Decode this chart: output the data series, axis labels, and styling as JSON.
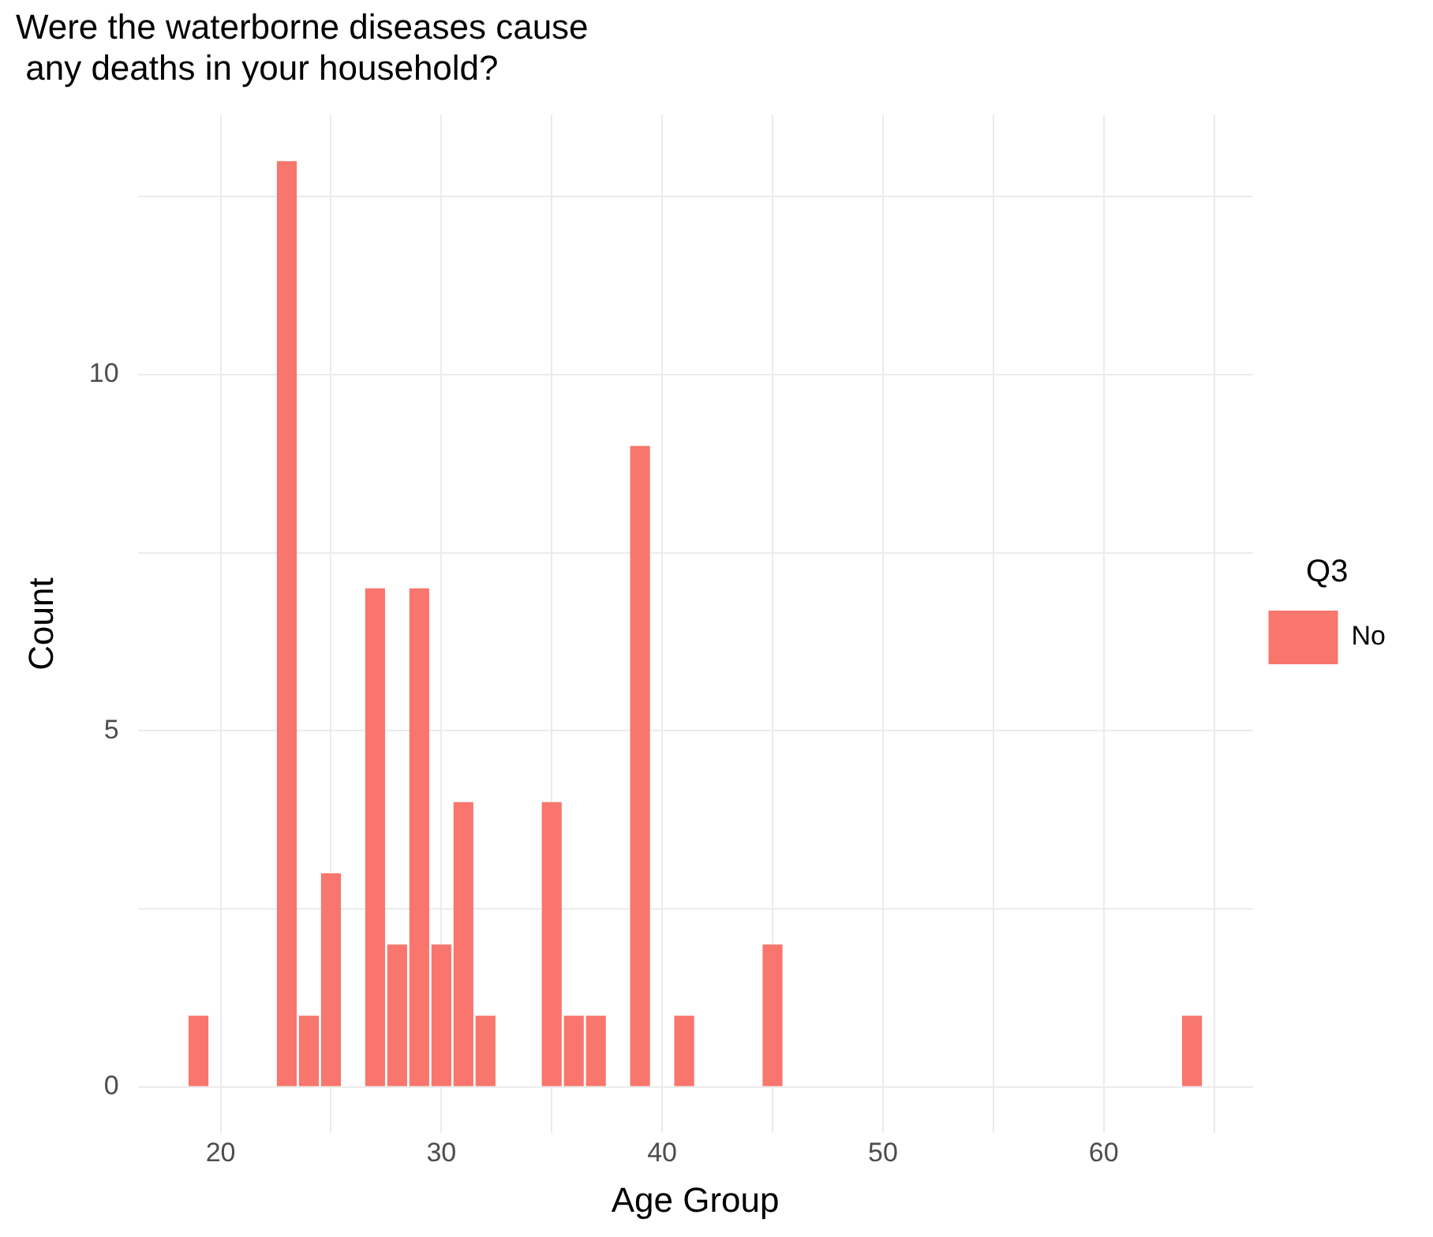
{
  "chart_data": {
    "type": "bar",
    "title": "Were the waterborne diseases cause\n any deaths in your household?",
    "xlabel": "Age Group",
    "ylabel": "Count",
    "legend_title": "Q3",
    "x": [
      19,
      23,
      24,
      25,
      27,
      28,
      29,
      30,
      31,
      32,
      35,
      36,
      37,
      39,
      41,
      45,
      64
    ],
    "series": [
      {
        "name": "No",
        "color": "#f8766d",
        "values": [
          1,
          13,
          1,
          3,
          7,
          2,
          7,
          2,
          4,
          1,
          4,
          1,
          1,
          9,
          1,
          2,
          1
        ]
      }
    ],
    "xlim": [
      16.25,
      66.75
    ],
    "xticks": [
      20,
      {
        "value": 25,
        "label": null
      },
      30,
      {
        "value": 35,
        "label": null
      },
      40,
      {
        "value": 45,
        "label": null
      },
      50,
      {
        "value": 55,
        "label": null
      },
      60,
      {
        "value": 65,
        "label": null
      }
    ],
    "ylim": [
      -0.65,
      13.65
    ],
    "yticks": [
      0,
      {
        "value": 2.5,
        "label": null
      },
      5,
      {
        "value": 7.5,
        "label": null
      },
      10,
      {
        "value": 12.5,
        "label": null
      }
    ],
    "grid": true,
    "legend": "right"
  }
}
